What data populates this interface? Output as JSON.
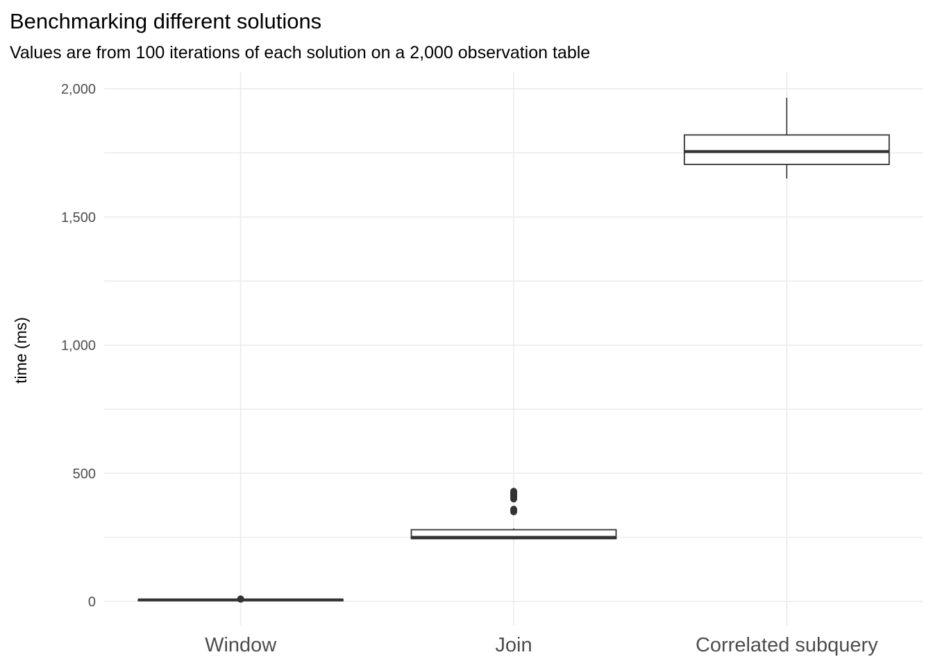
{
  "chart_data": {
    "type": "boxplot",
    "title": "Benchmarking different solutions",
    "subtitle": "Values are from 100 iterations of each solution on a 2,000 observation table",
    "xlabel": "",
    "ylabel": "time (ms)",
    "ylim": [
      -90,
      2070
    ],
    "yticks": [
      0,
      500,
      1000,
      1500,
      2000
    ],
    "ytick_labels": [
      "0",
      "500",
      "1,000",
      "1,500",
      "2,000"
    ],
    "grid": true,
    "categories": [
      "Window",
      "Join",
      "Correlated subquery"
    ],
    "boxes": [
      {
        "category": "Window",
        "min": 4,
        "q1": 5,
        "median": 6,
        "q3": 7,
        "max": 8,
        "outliers": [
          9,
          10
        ]
      },
      {
        "category": "Join",
        "min": 243,
        "q1": 245,
        "median": 250,
        "q3": 280,
        "max": 285,
        "outliers": [
          350,
          355,
          360,
          400,
          405,
          410,
          415,
          420,
          425,
          430
        ]
      },
      {
        "category": "Correlated subquery",
        "min": 1650,
        "q1": 1705,
        "median": 1755,
        "q3": 1820,
        "max": 1965,
        "outliers": []
      }
    ],
    "colors": {
      "box_fill": "#ffffff",
      "box_line": "#333333",
      "grid": "#ebebeb",
      "tick_text": "#4d4d4d"
    }
  }
}
